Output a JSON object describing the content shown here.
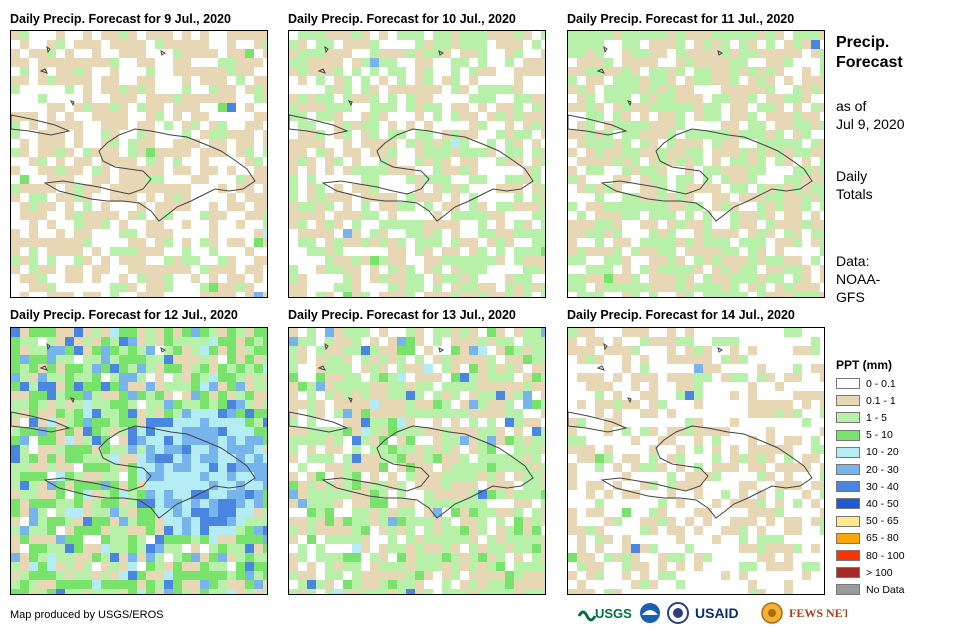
{
  "panels": [
    {
      "title": "Daily Precip. Forecast for 9 Jul., 2020",
      "seed": 11,
      "bias": [
        0.38,
        0.86,
        0.99,
        0.995
      ]
    },
    {
      "title": "Daily Precip. Forecast for 10 Jul., 2020",
      "seed": 23,
      "bias": [
        0.33,
        0.66,
        0.99,
        0.995
      ]
    },
    {
      "title": "Daily Precip. Forecast for 11 Jul., 2020",
      "seed": 37,
      "bias": [
        0.22,
        0.6,
        0.99,
        0.995
      ]
    },
    {
      "title": "Daily Precip. Forecast for 12 Jul., 2020",
      "seed": 41,
      "bias": [
        0.06,
        0.28,
        0.55,
        0.82
      ]
    },
    {
      "title": "Daily Precip. Forecast for 13 Jul., 2020",
      "seed": 53,
      "bias": [
        0.18,
        0.5,
        0.88,
        0.96
      ]
    },
    {
      "title": "Daily Precip. Forecast for 14 Jul., 2020",
      "seed": 67,
      "bias": [
        0.55,
        0.88,
        0.99,
        0.995
      ]
    }
  ],
  "side": {
    "title_line1": "Precip.",
    "title_line2": "Forecast",
    "asof_line1": "as of",
    "asof_line2": "Jul 9, 2020",
    "daily_line1": "Daily",
    "daily_line2": "Totals",
    "data_line1": "Data:",
    "data_line2": "NOAA-",
    "data_line3": "GFS"
  },
  "legend": {
    "title": "PPT (mm)",
    "items": [
      {
        "label": "0 - 0.1",
        "color": "#ffffff"
      },
      {
        "label": "0.1 - 1",
        "color": "#e8d7b5"
      },
      {
        "label": "1 - 5",
        "color": "#b6f0a9"
      },
      {
        "label": "5 - 10",
        "color": "#77e36a"
      },
      {
        "label": "10 - 20",
        "color": "#b3ecf2"
      },
      {
        "label": "20 - 30",
        "color": "#78b4ec"
      },
      {
        "label": "30 - 40",
        "color": "#4a86e0"
      },
      {
        "label": "40 - 50",
        "color": "#1f5bd6"
      },
      {
        "label": "50 - 65",
        "color": "#ffe98a"
      },
      {
        "label": "65 - 80",
        "color": "#ffa500"
      },
      {
        "label": "80 - 100",
        "color": "#ff3300"
      },
      {
        "label": "> 100",
        "color": "#a52a2a"
      },
      {
        "label": "No Data",
        "color": "#9a9a9a"
      }
    ]
  },
  "footer": {
    "credit": "Map produced by USGS/EROS",
    "logos": [
      "USGS",
      "NOAA",
      "USAID",
      "FEWS NET"
    ]
  }
}
